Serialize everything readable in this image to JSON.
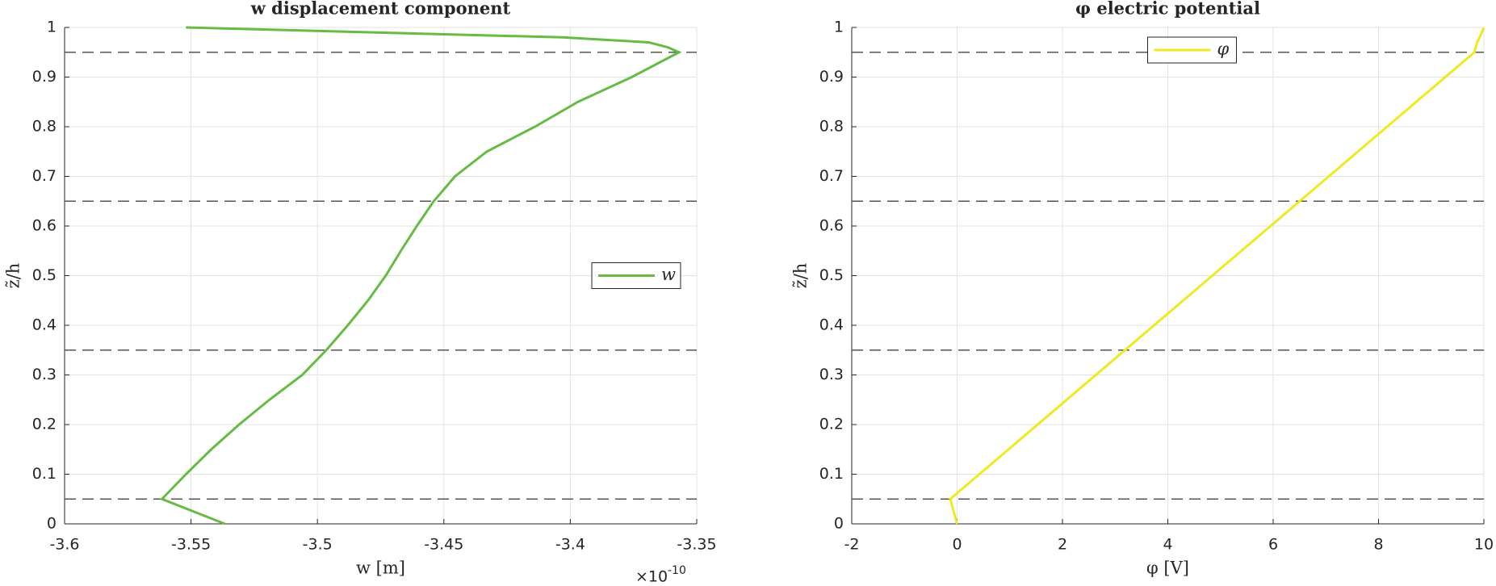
{
  "chart_data": [
    {
      "type": "line",
      "title": "w displacement component",
      "xlabel": "w [m]",
      "ylabel": "z̃/h",
      "x_multiplier": "×10",
      "x_multiplier_exponent": "-10",
      "xlim": [
        -3.6,
        -3.35
      ],
      "ylim": [
        0,
        1
      ],
      "xticks": [
        -3.6,
        -3.55,
        -3.5,
        -3.45,
        -3.4,
        -3.35
      ],
      "yticks": [
        0,
        0.1,
        0.2,
        0.3,
        0.4,
        0.5,
        0.6,
        0.7,
        0.8,
        0.9,
        1
      ],
      "grid": true,
      "legend": "east",
      "hlines": [
        0.05,
        0.35,
        0.65,
        0.95
      ],
      "series": [
        {
          "name": "w",
          "color": "#66bb44",
          "x": [
            -3.5366,
            -3.5615,
            -3.552,
            -3.542,
            -3.531,
            -3.519,
            -3.506,
            -3.4965,
            -3.488,
            -3.48,
            -3.473,
            -3.467,
            -3.4607,
            -3.454,
            -3.4456,
            -3.433,
            -3.414,
            -3.397,
            -3.3757,
            -3.357,
            -3.3615,
            -3.369,
            -3.403,
            -3.478,
            -3.552
          ],
          "y": [
            0,
            0.05,
            0.1,
            0.15,
            0.2,
            0.25,
            0.3,
            0.35,
            0.4,
            0.45,
            0.5,
            0.55,
            0.6,
            0.65,
            0.7,
            0.75,
            0.8,
            0.85,
            0.9,
            0.95,
            0.96,
            0.97,
            0.98,
            0.99,
            1
          ]
        }
      ]
    },
    {
      "type": "line",
      "title": "φ electric potential",
      "xlabel": "φ [V]",
      "ylabel": "z̃/h",
      "xlim": [
        -2,
        10
      ],
      "ylim": [
        0,
        1
      ],
      "xticks": [
        -2,
        0,
        2,
        4,
        6,
        8,
        10
      ],
      "yticks": [
        0,
        0.1,
        0.2,
        0.3,
        0.4,
        0.5,
        0.6,
        0.7,
        0.8,
        0.9,
        1
      ],
      "grid": true,
      "legend": "north",
      "hlines": [
        0.05,
        0.35,
        0.65,
        0.95
      ],
      "series": [
        {
          "name": "φ",
          "color": "#eeea22",
          "x": [
            0,
            -0.13,
            9.82,
            9.87,
            9.92,
            10
          ],
          "y": [
            0,
            0.05,
            0.95,
            0.97,
            0.98,
            1
          ]
        }
      ]
    }
  ]
}
